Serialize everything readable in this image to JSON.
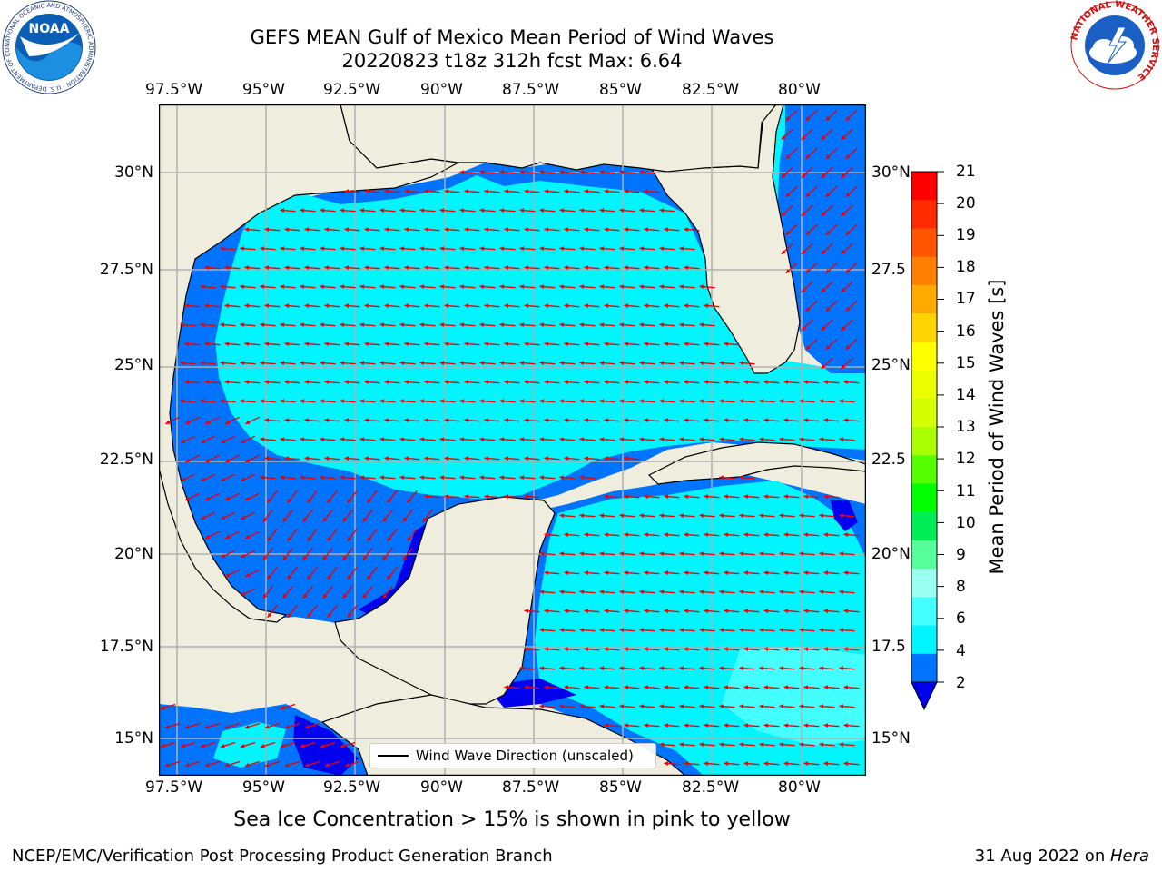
{
  "header": {
    "title_line1": "GEFS MEAN Gulf of Mexico Mean Period of Wind Waves",
    "title_line2": "20220823 t18z 312h fcst   Max: 6.64"
  },
  "logos": {
    "noaa_text": "NOAA",
    "noaa_ring_text": "NATIONAL OCEANIC AND ATMOSPHERIC ADMINISTRATION · U.S. DEPARTMENT OF COMMERCE",
    "nws_ring_text": "NATIONAL WEATHER SERVICE"
  },
  "map": {
    "lon_labels": [
      "97.5°W",
      "95°W",
      "92.5°W",
      "90°W",
      "87.5°W",
      "85°W",
      "82.5°W",
      "80°W"
    ],
    "lat_labels_left": [
      "30°N",
      "27.5°N",
      "25°N",
      "22.5°N",
      "20°N",
      "17.5°N",
      "15°N"
    ],
    "lat_labels_right": [
      "30°N",
      "27.5",
      "25°N",
      "22.5",
      "20°N",
      "17.5",
      "15°N"
    ],
    "legend_label": "Wind Wave Direction (unscaled)",
    "colors": {
      "land": "#efedde",
      "low_period": "#0073ff",
      "mid_period": "#00f5ff",
      "very_low": "#0000ee",
      "light_cyan": "#44ffff",
      "arrow": "#ee0000",
      "grid": "#b0b0b0"
    }
  },
  "colorbar": {
    "label": "Mean Period of Wind Waves [s]",
    "ticks": [
      "21",
      "20",
      "19",
      "18",
      "17",
      "16",
      "15",
      "14",
      "13",
      "12",
      "11",
      "10",
      "9",
      "8",
      "6",
      "4",
      "2"
    ],
    "colors_top_to_bottom": [
      "#ff0000",
      "#ff2a00",
      "#ff5500",
      "#ff7f00",
      "#ffaa00",
      "#ffd400",
      "#ffff00",
      "#ecff00",
      "#d4ff00",
      "#aaff00",
      "#55ff00",
      "#00ff00",
      "#00ee55",
      "#55ff99",
      "#99ffee",
      "#44ffff",
      "#00f5ff",
      "#0073ff"
    ],
    "extend_color": "#0000ee"
  },
  "notes": {
    "sea_ice": "Sea Ice Concentration > 15% is shown in pink to yellow"
  },
  "footer": {
    "left": "NCEP/EMC/Verification Post Processing Product Generation Branch",
    "date_prefix": "31 Aug 2022 on ",
    "machine": "Hera"
  }
}
